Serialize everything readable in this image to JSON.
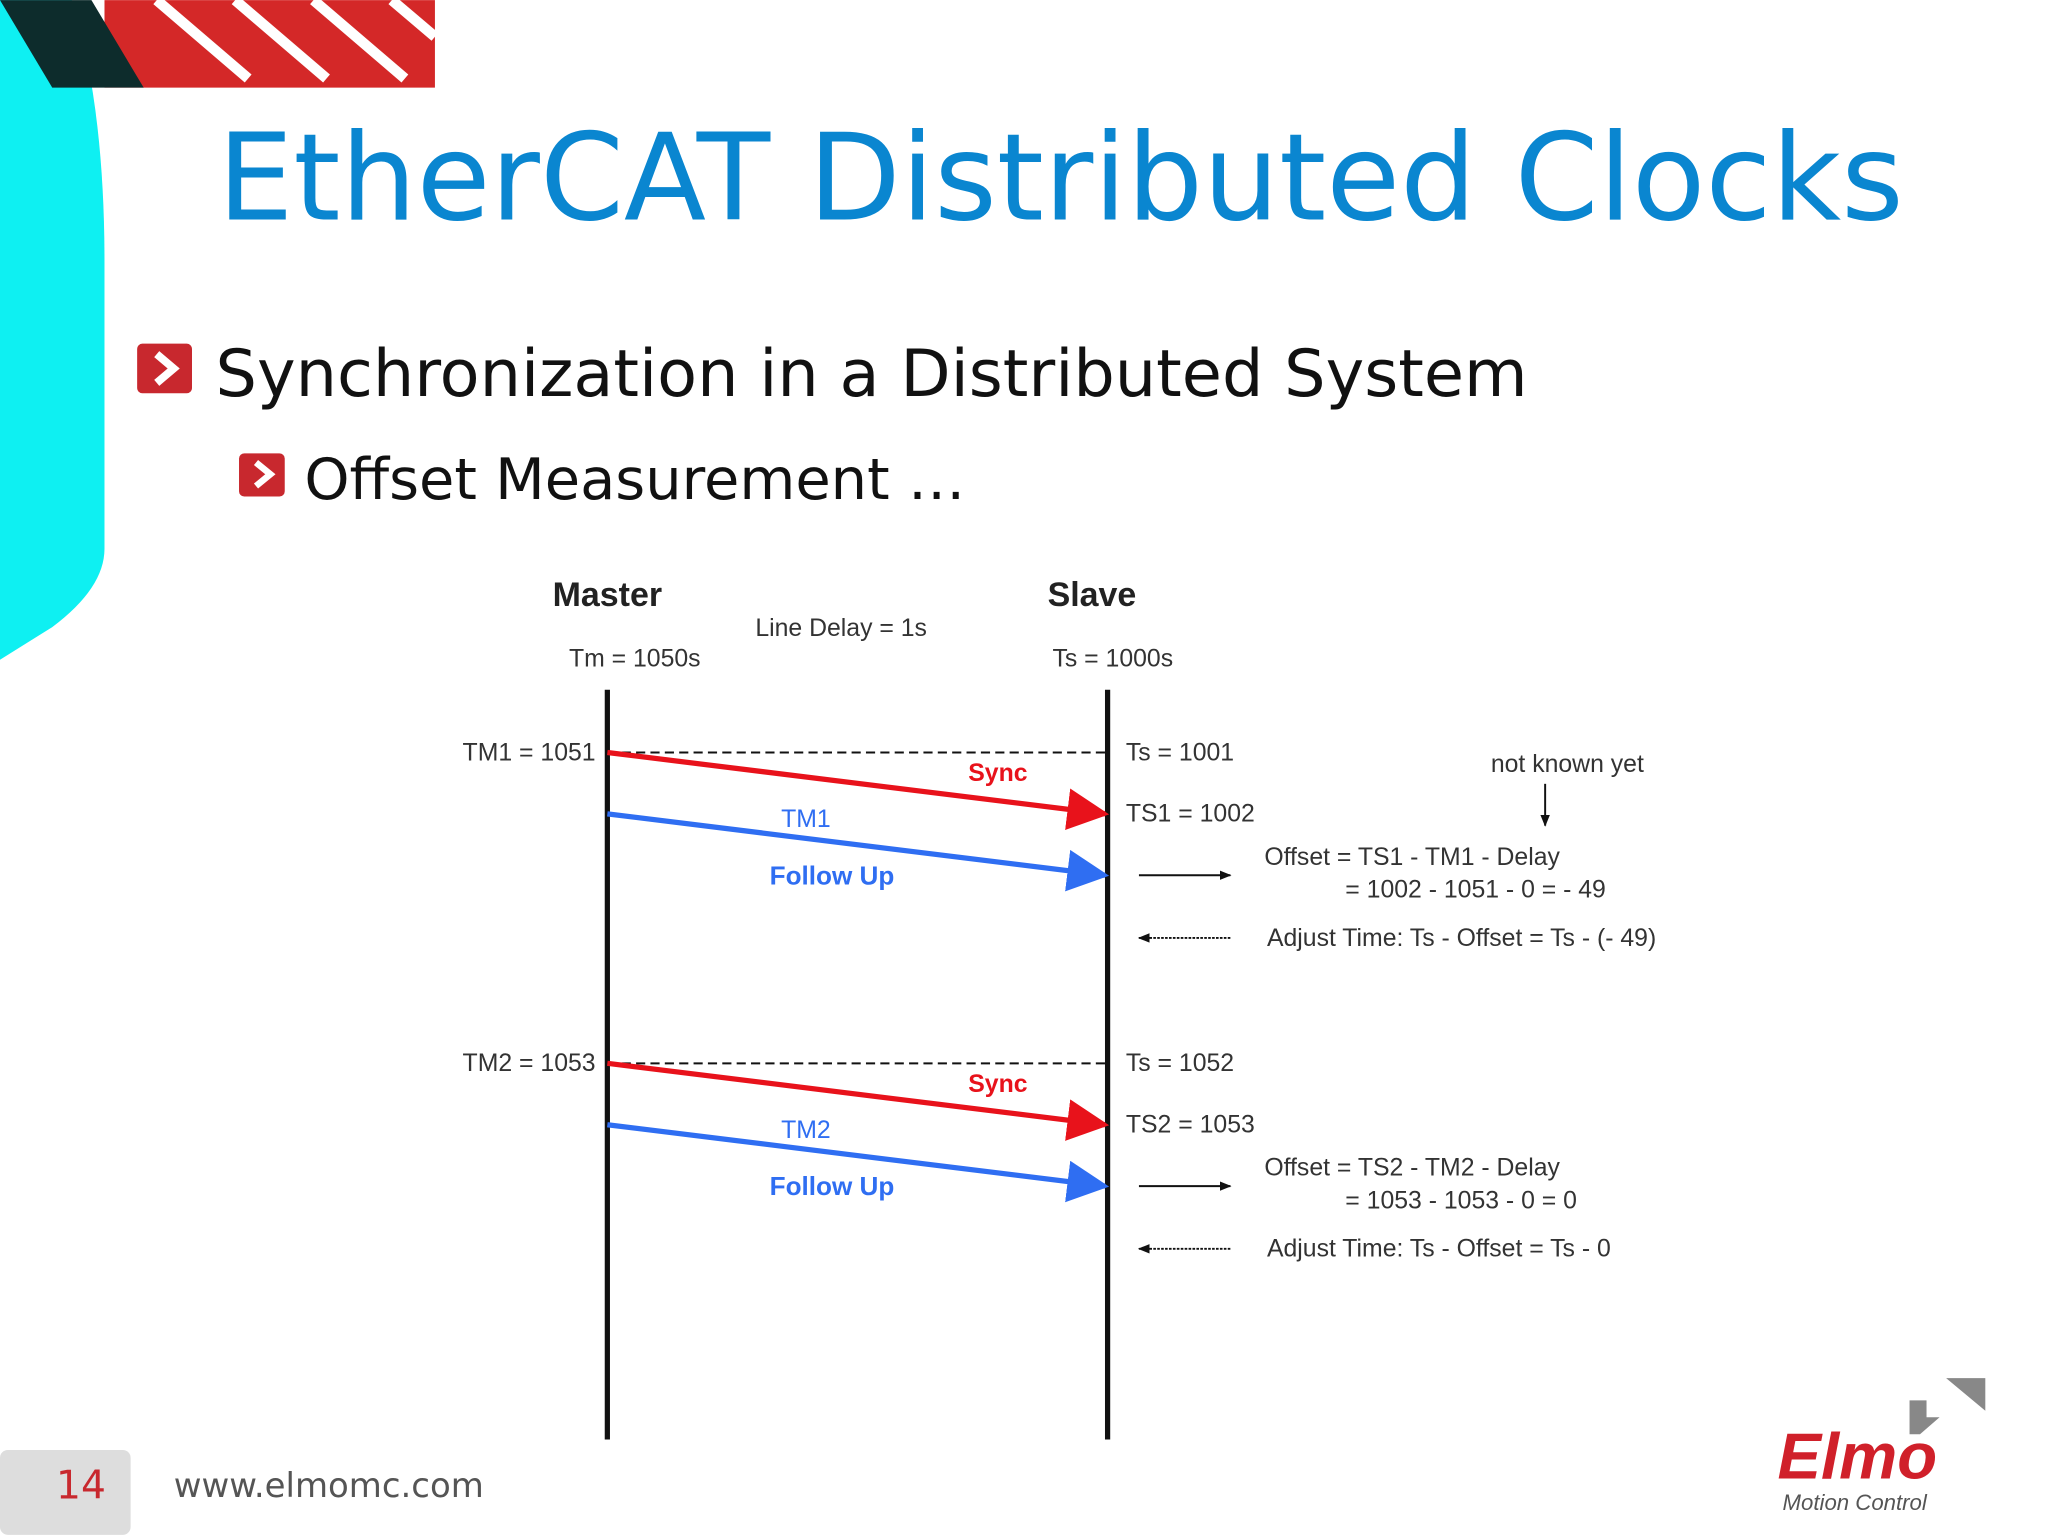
{
  "slide": {
    "title": "EtherCAT Distributed Clocks",
    "bullets": [
      "Synchronization in a Distributed System",
      "Offset Measurement …"
    ],
    "diagram": {
      "master": "Master",
      "slave": "Slave",
      "line_delay": "Line Delay = 1s",
      "master_time": "Tm = 1050s",
      "slave_time": "Ts = 1000s",
      "not_known": "not known yet",
      "rounds": [
        {
          "tm": "TM1 = 1051",
          "ts_before": "Ts = 1001",
          "sync": "Sync",
          "ts_recv": "TS1 = 1002",
          "tm_label": "TM1",
          "follow_up": "Follow Up",
          "offset_1": "Offset = TS1 - TM1 - Delay",
          "offset_2": "= 1002 - 1051 - 0 = - 49",
          "adjust": "Adjust Time: Ts - Offset = Ts - (- 49)"
        },
        {
          "tm": "TM2 = 1053",
          "ts_before": "Ts = 1052",
          "sync": "Sync",
          "ts_recv": "TS2 = 1053",
          "tm_label": "TM2",
          "follow_up": "Follow Up",
          "offset_1": "Offset = TS2 - TM2 - Delay",
          "offset_2": "= 1053 - 1053 - 0 = 0",
          "adjust": "Adjust Time: Ts - Offset  = Ts - 0"
        }
      ]
    },
    "footer": {
      "page": "14",
      "url": "www.elmomc.com",
      "logo": "Elmo",
      "tagline": "Motion Control"
    }
  }
}
